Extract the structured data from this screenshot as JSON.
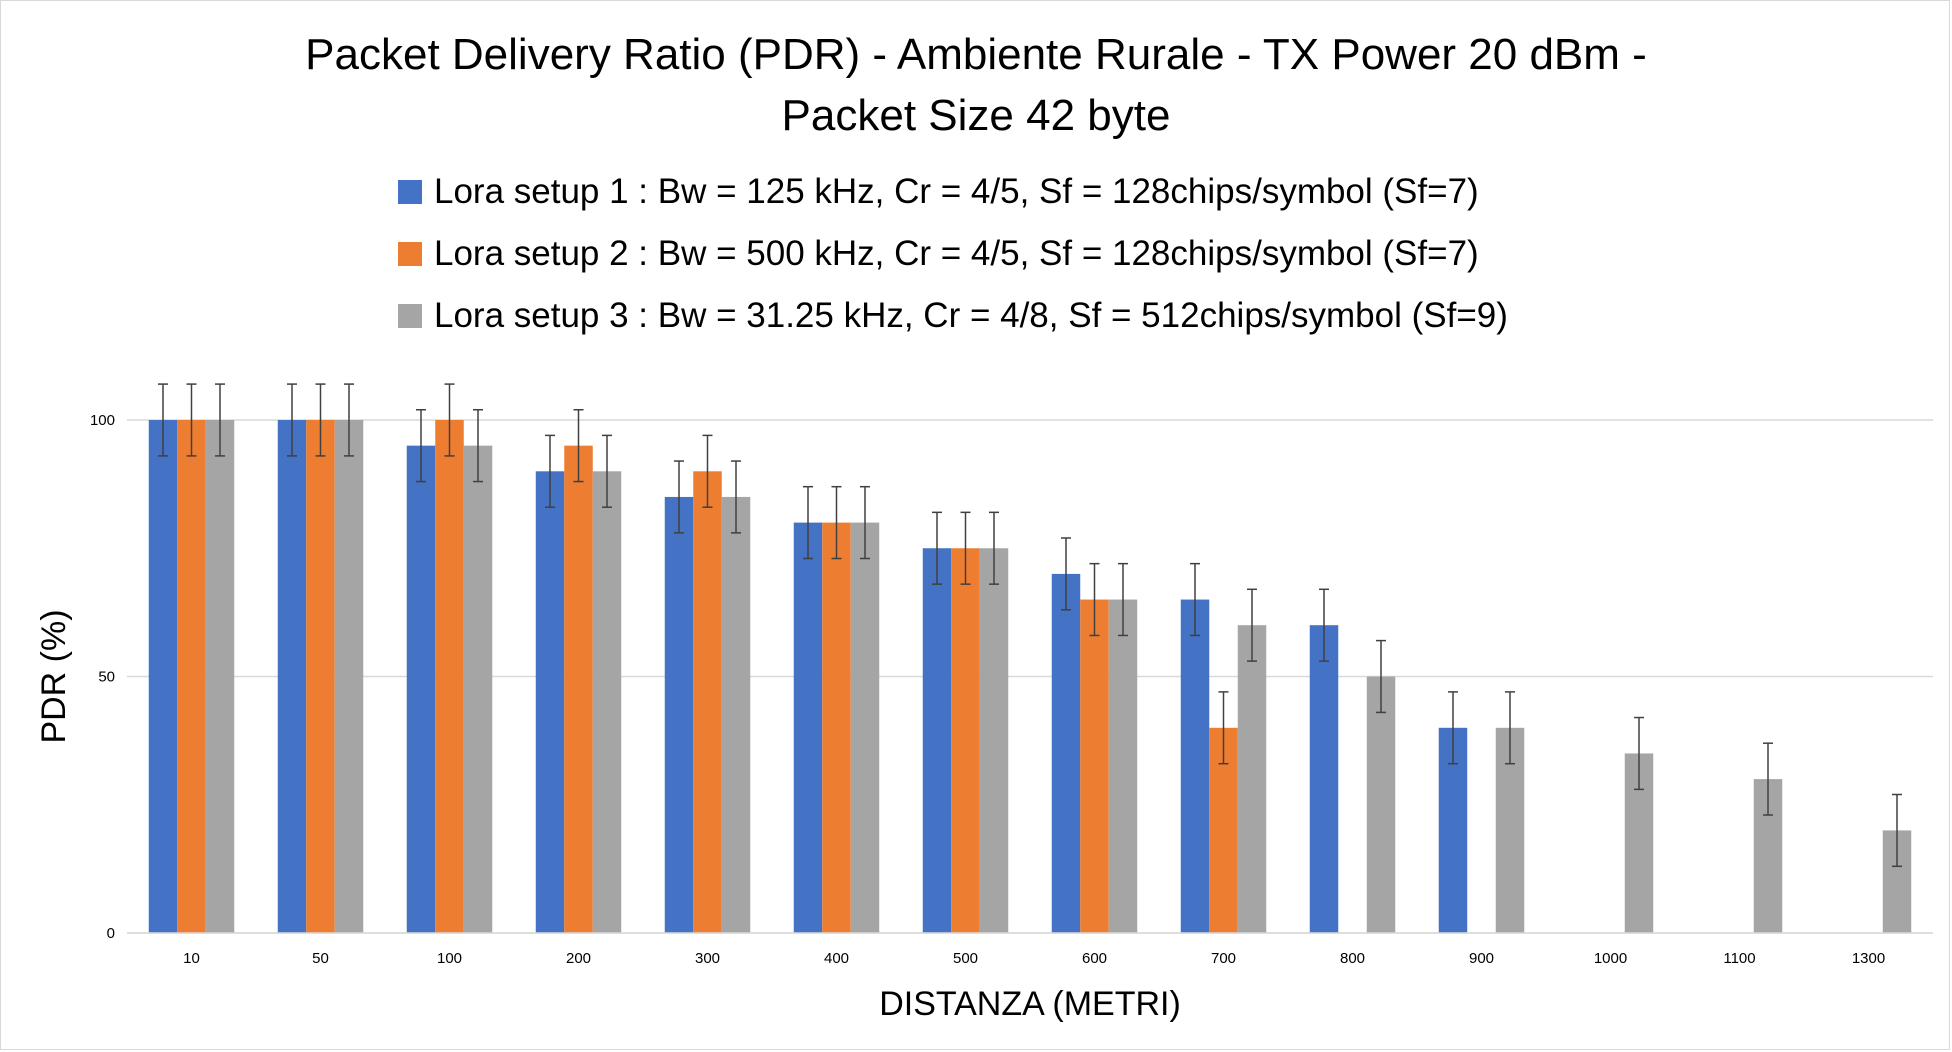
{
  "chart_data": {
    "type": "bar",
    "title_line1": "Packet Delivery Ratio (PDR) - Ambiente Rurale - TX Power 20 dBm -",
    "title_line2": "Packet Size 42 byte",
    "xlabel": "DISTANZA (METRI)",
    "ylabel": "PDR (%)",
    "ylim": [
      0,
      100
    ],
    "yticks": [
      0,
      50,
      100
    ],
    "grid": true,
    "legend_position": "top",
    "error_bar": 7,
    "categories": [
      "10",
      "50",
      "100",
      "200",
      "300",
      "400",
      "500",
      "600",
      "700",
      "800",
      "900",
      "1000",
      "1100",
      "1300"
    ],
    "series": [
      {
        "name": "Lora setup 1 : Bw = 125 kHz, Cr = 4/5, Sf = 128chips/symbol (Sf=7)",
        "color": "#4472C4",
        "values": [
          100,
          100,
          95,
          90,
          85,
          80,
          75,
          70,
          65,
          60,
          40,
          null,
          null,
          null
        ]
      },
      {
        "name": "Lora setup 2 : Bw = 500 kHz, Cr = 4/5, Sf = 128chips/symbol (Sf=7)",
        "color": "#ED7D31",
        "values": [
          100,
          100,
          100,
          95,
          90,
          80,
          75,
          65,
          40,
          null,
          null,
          null,
          null,
          null
        ]
      },
      {
        "name": "Lora setup 3 : Bw = 31.25 kHz, Cr = 4/8, Sf = 512chips/symbol (Sf=9)",
        "color": "#A5A5A5",
        "values": [
          100,
          100,
          95,
          90,
          85,
          80,
          75,
          65,
          60,
          50,
          40,
          35,
          30,
          20
        ]
      }
    ]
  }
}
